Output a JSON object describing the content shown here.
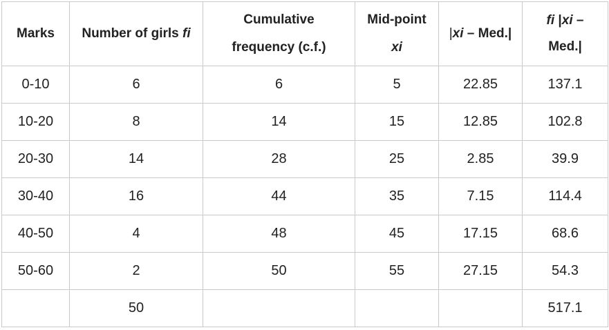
{
  "table": {
    "headers": {
      "marks": "Marks",
      "girls_text": "Number of girls",
      "girls_sym": "fi",
      "cf_line1": "Cumulative",
      "cf_line2": "frequency (c.f.)",
      "mid_line1": "Mid-point",
      "mid_line2": "xi",
      "dev_pre": "|",
      "dev_sym": "xi",
      "dev_post": " – Med.|",
      "prod_sym_f": "fi",
      "prod_mid": " |",
      "prod_sym_x": "xi",
      "prod_post": " –",
      "prod_line2": "Med.|"
    },
    "rows": [
      {
        "marks": "0-10",
        "girls": "6",
        "cf": "6",
        "mid": "5",
        "dev": "22.85",
        "prod": "137.1"
      },
      {
        "marks": "10-20",
        "girls": "8",
        "cf": "14",
        "mid": "15",
        "dev": "12.85",
        "prod": "102.8"
      },
      {
        "marks": "20-30",
        "girls": "14",
        "cf": "28",
        "mid": "25",
        "dev": "2.85",
        "prod": "39.9"
      },
      {
        "marks": "30-40",
        "girls": "16",
        "cf": "44",
        "mid": "35",
        "dev": "7.15",
        "prod": "114.4"
      },
      {
        "marks": "40-50",
        "girls": "4",
        "cf": "48",
        "mid": "45",
        "dev": "17.15",
        "prod": "68.6"
      },
      {
        "marks": "50-60",
        "girls": "2",
        "cf": "50",
        "mid": "55",
        "dev": "27.15",
        "prod": "54.3"
      }
    ],
    "total": {
      "marks": "",
      "girls": "50",
      "cf": "",
      "mid": "",
      "dev": "",
      "prod": "517.1"
    }
  }
}
